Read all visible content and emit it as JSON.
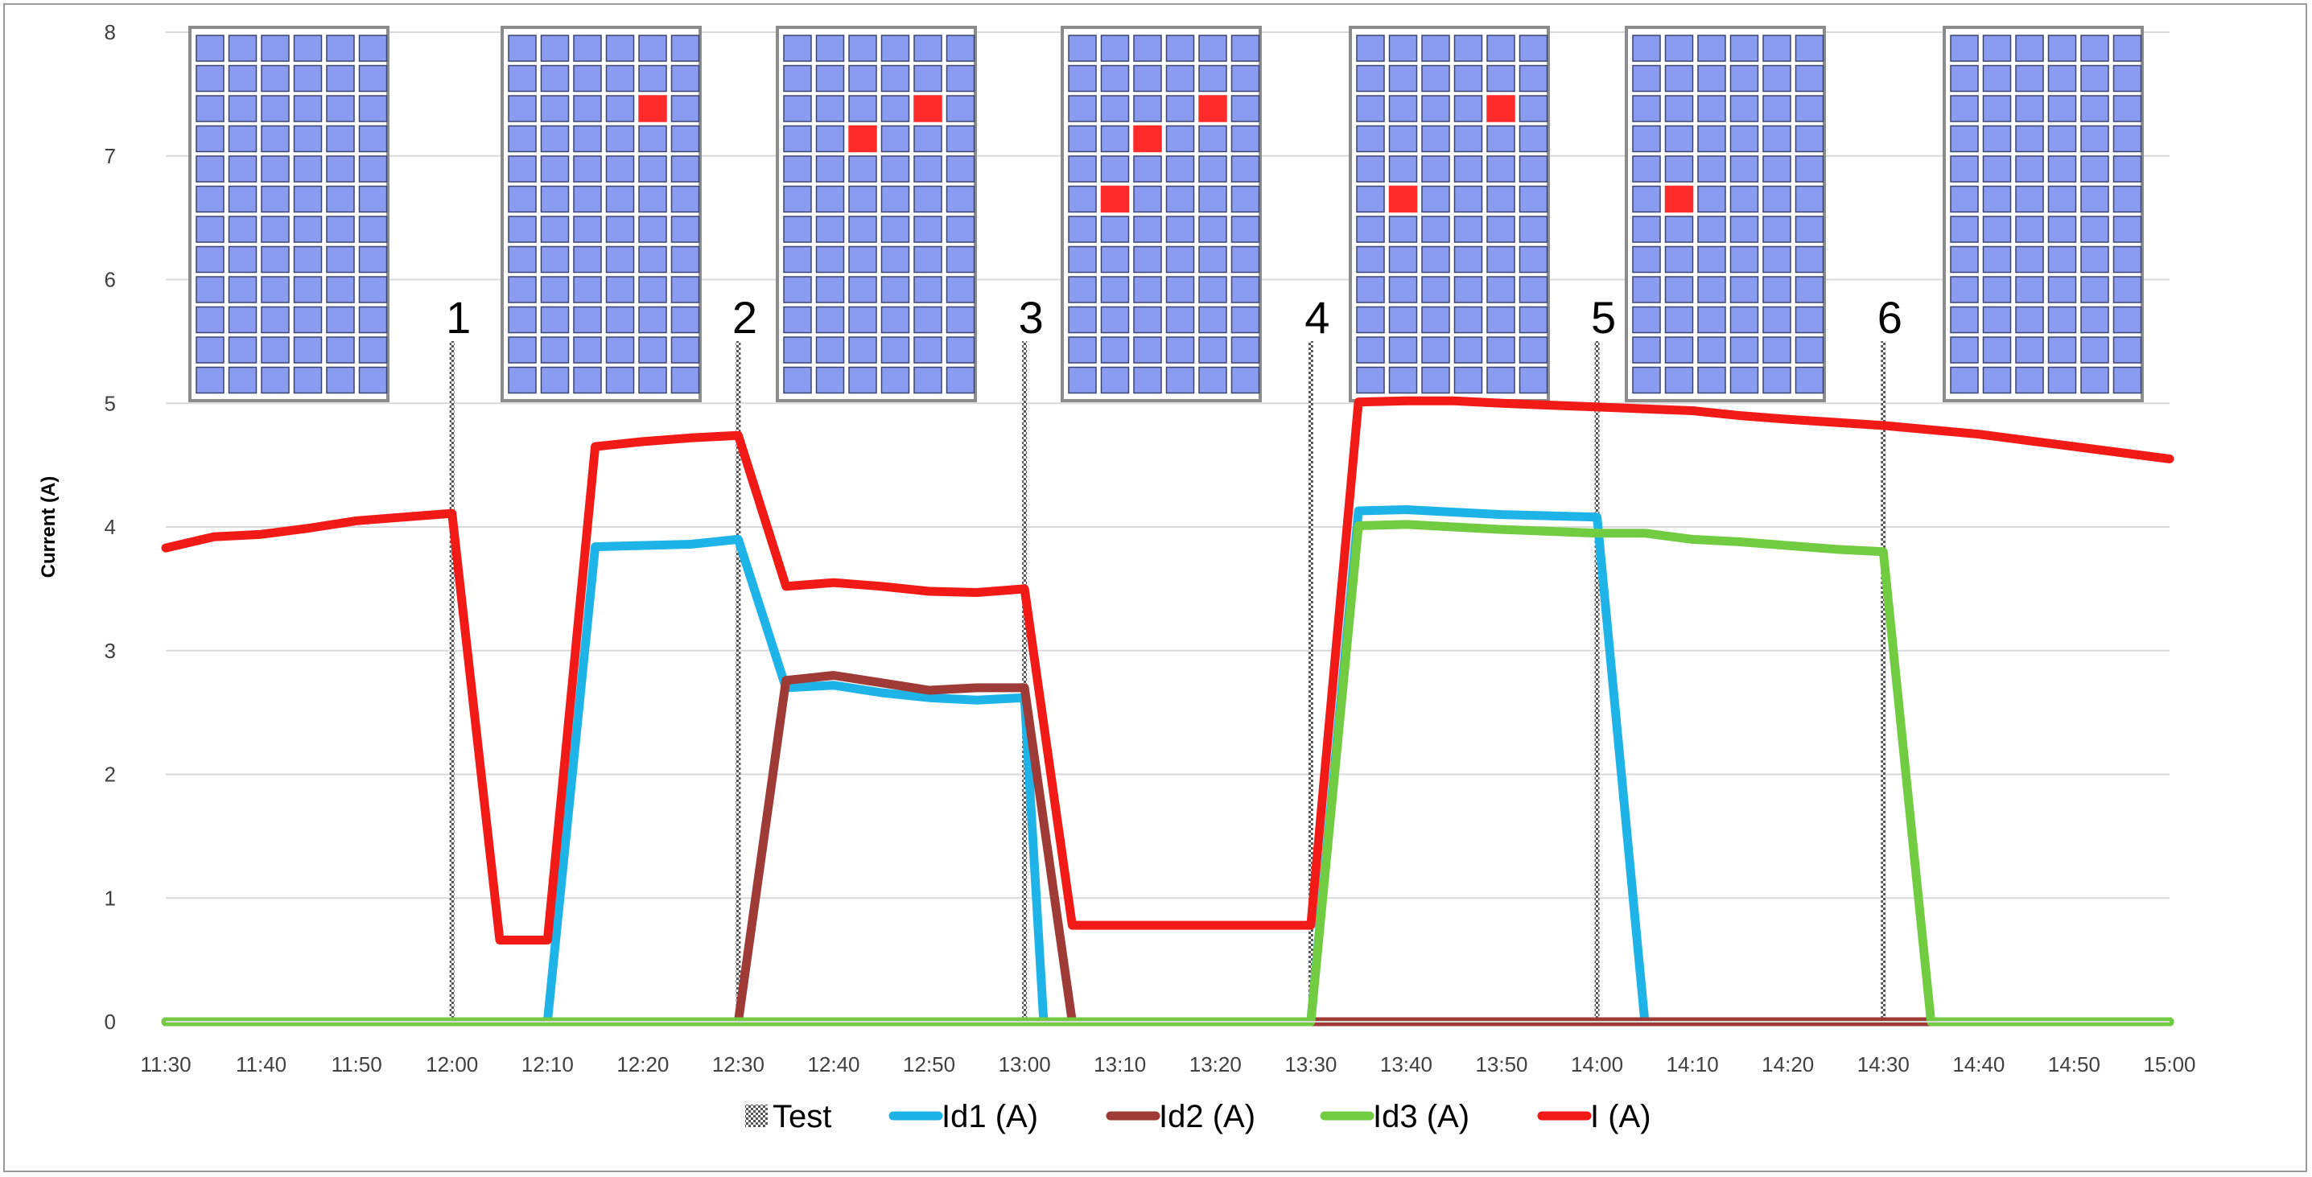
{
  "chart_data": {
    "type": "line",
    "ylabel": "Current (A)",
    "xlabel": "",
    "ylim": [
      0,
      8
    ],
    "yticks": [
      0,
      1,
      2,
      3,
      4,
      5,
      6,
      7,
      8
    ],
    "x_minutes_range": [
      690,
      900
    ],
    "xticks": [
      {
        "min": 690,
        "label": "11:30"
      },
      {
        "min": 700,
        "label": "11:40"
      },
      {
        "min": 710,
        "label": "11:50"
      },
      {
        "min": 720,
        "label": "12:00"
      },
      {
        "min": 730,
        "label": "12:10"
      },
      {
        "min": 740,
        "label": "12:20"
      },
      {
        "min": 750,
        "label": "12:30"
      },
      {
        "min": 760,
        "label": "12:40"
      },
      {
        "min": 770,
        "label": "12:50"
      },
      {
        "min": 780,
        "label": "13:00"
      },
      {
        "min": 790,
        "label": "13:10"
      },
      {
        "min": 800,
        "label": "13:20"
      },
      {
        "min": 810,
        "label": "13:30"
      },
      {
        "min": 820,
        "label": "13:40"
      },
      {
        "min": 830,
        "label": "13:50"
      },
      {
        "min": 840,
        "label": "14:00"
      },
      {
        "min": 850,
        "label": "14:10"
      },
      {
        "min": 860,
        "label": "14:20"
      },
      {
        "min": 870,
        "label": "14:30"
      },
      {
        "min": 880,
        "label": "14:40"
      },
      {
        "min": 890,
        "label": "14:50"
      },
      {
        "min": 900,
        "label": "15:00"
      }
    ],
    "grid": true,
    "legend_position": "bottom",
    "tests": [
      {
        "label": "1",
        "min": 720
      },
      {
        "label": "2",
        "min": 750
      },
      {
        "label": "3",
        "min": 780
      },
      {
        "label": "4",
        "min": 810
      },
      {
        "label": "5",
        "min": 840
      },
      {
        "label": "6",
        "min": 870
      }
    ],
    "series": [
      {
        "name": "Id1 (A)",
        "color": "#1fb4e8",
        "points": [
          [
            690,
            0
          ],
          [
            730,
            0
          ],
          [
            735,
            3.84
          ],
          [
            745,
            3.86
          ],
          [
            750,
            3.9
          ],
          [
            755,
            2.7
          ],
          [
            760,
            2.72
          ],
          [
            765,
            2.66
          ],
          [
            770,
            2.62
          ],
          [
            775,
            2.6
          ],
          [
            780,
            2.62
          ],
          [
            782,
            0
          ],
          [
            810,
            0
          ],
          [
            815,
            4.13
          ],
          [
            820,
            4.14
          ],
          [
            830,
            4.1
          ],
          [
            840,
            4.08
          ],
          [
            845,
            0
          ],
          [
            900,
            0
          ]
        ]
      },
      {
        "name": "Id2 (A)",
        "color": "#9e3b36",
        "points": [
          [
            690,
            0
          ],
          [
            750,
            0
          ],
          [
            755,
            2.76
          ],
          [
            760,
            2.8
          ],
          [
            765,
            2.74
          ],
          [
            770,
            2.68
          ],
          [
            775,
            2.7
          ],
          [
            780,
            2.7
          ],
          [
            785,
            0
          ],
          [
            900,
            0
          ]
        ]
      },
      {
        "name": "Id3 (A)",
        "color": "#72cc42",
        "points": [
          [
            690,
            0
          ],
          [
            810,
            0
          ],
          [
            815,
            4.01
          ],
          [
            820,
            4.02
          ],
          [
            830,
            3.98
          ],
          [
            840,
            3.95
          ],
          [
            845,
            3.95
          ],
          [
            850,
            3.9
          ],
          [
            855,
            3.88
          ],
          [
            860,
            3.85
          ],
          [
            865,
            3.82
          ],
          [
            870,
            3.8
          ],
          [
            875,
            0
          ],
          [
            900,
            0
          ]
        ]
      },
      {
        "name": "I (A)",
        "color": "#f21a17",
        "points": [
          [
            690,
            3.83
          ],
          [
            695,
            3.92
          ],
          [
            700,
            3.94
          ],
          [
            705,
            3.99
          ],
          [
            710,
            4.05
          ],
          [
            715,
            4.08
          ],
          [
            720,
            4.11
          ],
          [
            725,
            0.66
          ],
          [
            730,
            0.66
          ],
          [
            735,
            4.65
          ],
          [
            740,
            4.69
          ],
          [
            745,
            4.72
          ],
          [
            750,
            4.74
          ],
          [
            755,
            3.52
          ],
          [
            760,
            3.55
          ],
          [
            765,
            3.52
          ],
          [
            770,
            3.48
          ],
          [
            775,
            3.47
          ],
          [
            780,
            3.5
          ],
          [
            785,
            0.78
          ],
          [
            790,
            0.78
          ],
          [
            800,
            0.78
          ],
          [
            810,
            0.78
          ],
          [
            815,
            5.01
          ],
          [
            820,
            5.02
          ],
          [
            825,
            5.02
          ],
          [
            830,
            5.0
          ],
          [
            840,
            4.97
          ],
          [
            850,
            4.94
          ],
          [
            855,
            4.9
          ],
          [
            860,
            4.87
          ],
          [
            870,
            4.82
          ],
          [
            880,
            4.75
          ],
          [
            890,
            4.65
          ],
          [
            900,
            4.55
          ]
        ]
      }
    ],
    "legend": [
      {
        "name": "Test",
        "style": "hatched"
      },
      {
        "name": "Id1 (A)",
        "color": "#1fb4e8"
      },
      {
        "name": "Id2 (A)",
        "color": "#9e3b36"
      },
      {
        "name": "Id3 (A)",
        "color": "#72cc42"
      },
      {
        "name": "I (A)",
        "color": "#f21a17"
      }
    ],
    "panel_shading": [
      {
        "test": "before 1",
        "shaded_cells": []
      },
      {
        "test": "1-2",
        "shaded_cells": [
          [
            2,
            4
          ]
        ]
      },
      {
        "test": "2-3",
        "shaded_cells": [
          [
            2,
            4
          ],
          [
            3,
            2
          ]
        ]
      },
      {
        "test": "3-4",
        "shaded_cells": [
          [
            2,
            4
          ],
          [
            3,
            2
          ],
          [
            5,
            1
          ]
        ]
      },
      {
        "test": "4-5",
        "shaded_cells": [
          [
            2,
            4
          ],
          [
            5,
            1
          ]
        ]
      },
      {
        "test": "5-6",
        "shaded_cells": [
          [
            5,
            1
          ]
        ]
      },
      {
        "test": "after 6",
        "shaded_cells": []
      }
    ],
    "panel_grid": {
      "rows": 12,
      "cols": 6
    },
    "colors": {
      "cell": "#8b9cf0",
      "cell_border": "#3a4470",
      "shaded_cell": "#ff2a2a",
      "panel_border": "#8c8c8c",
      "gridline": "#d9d9d9",
      "test_line": "#777777"
    }
  }
}
